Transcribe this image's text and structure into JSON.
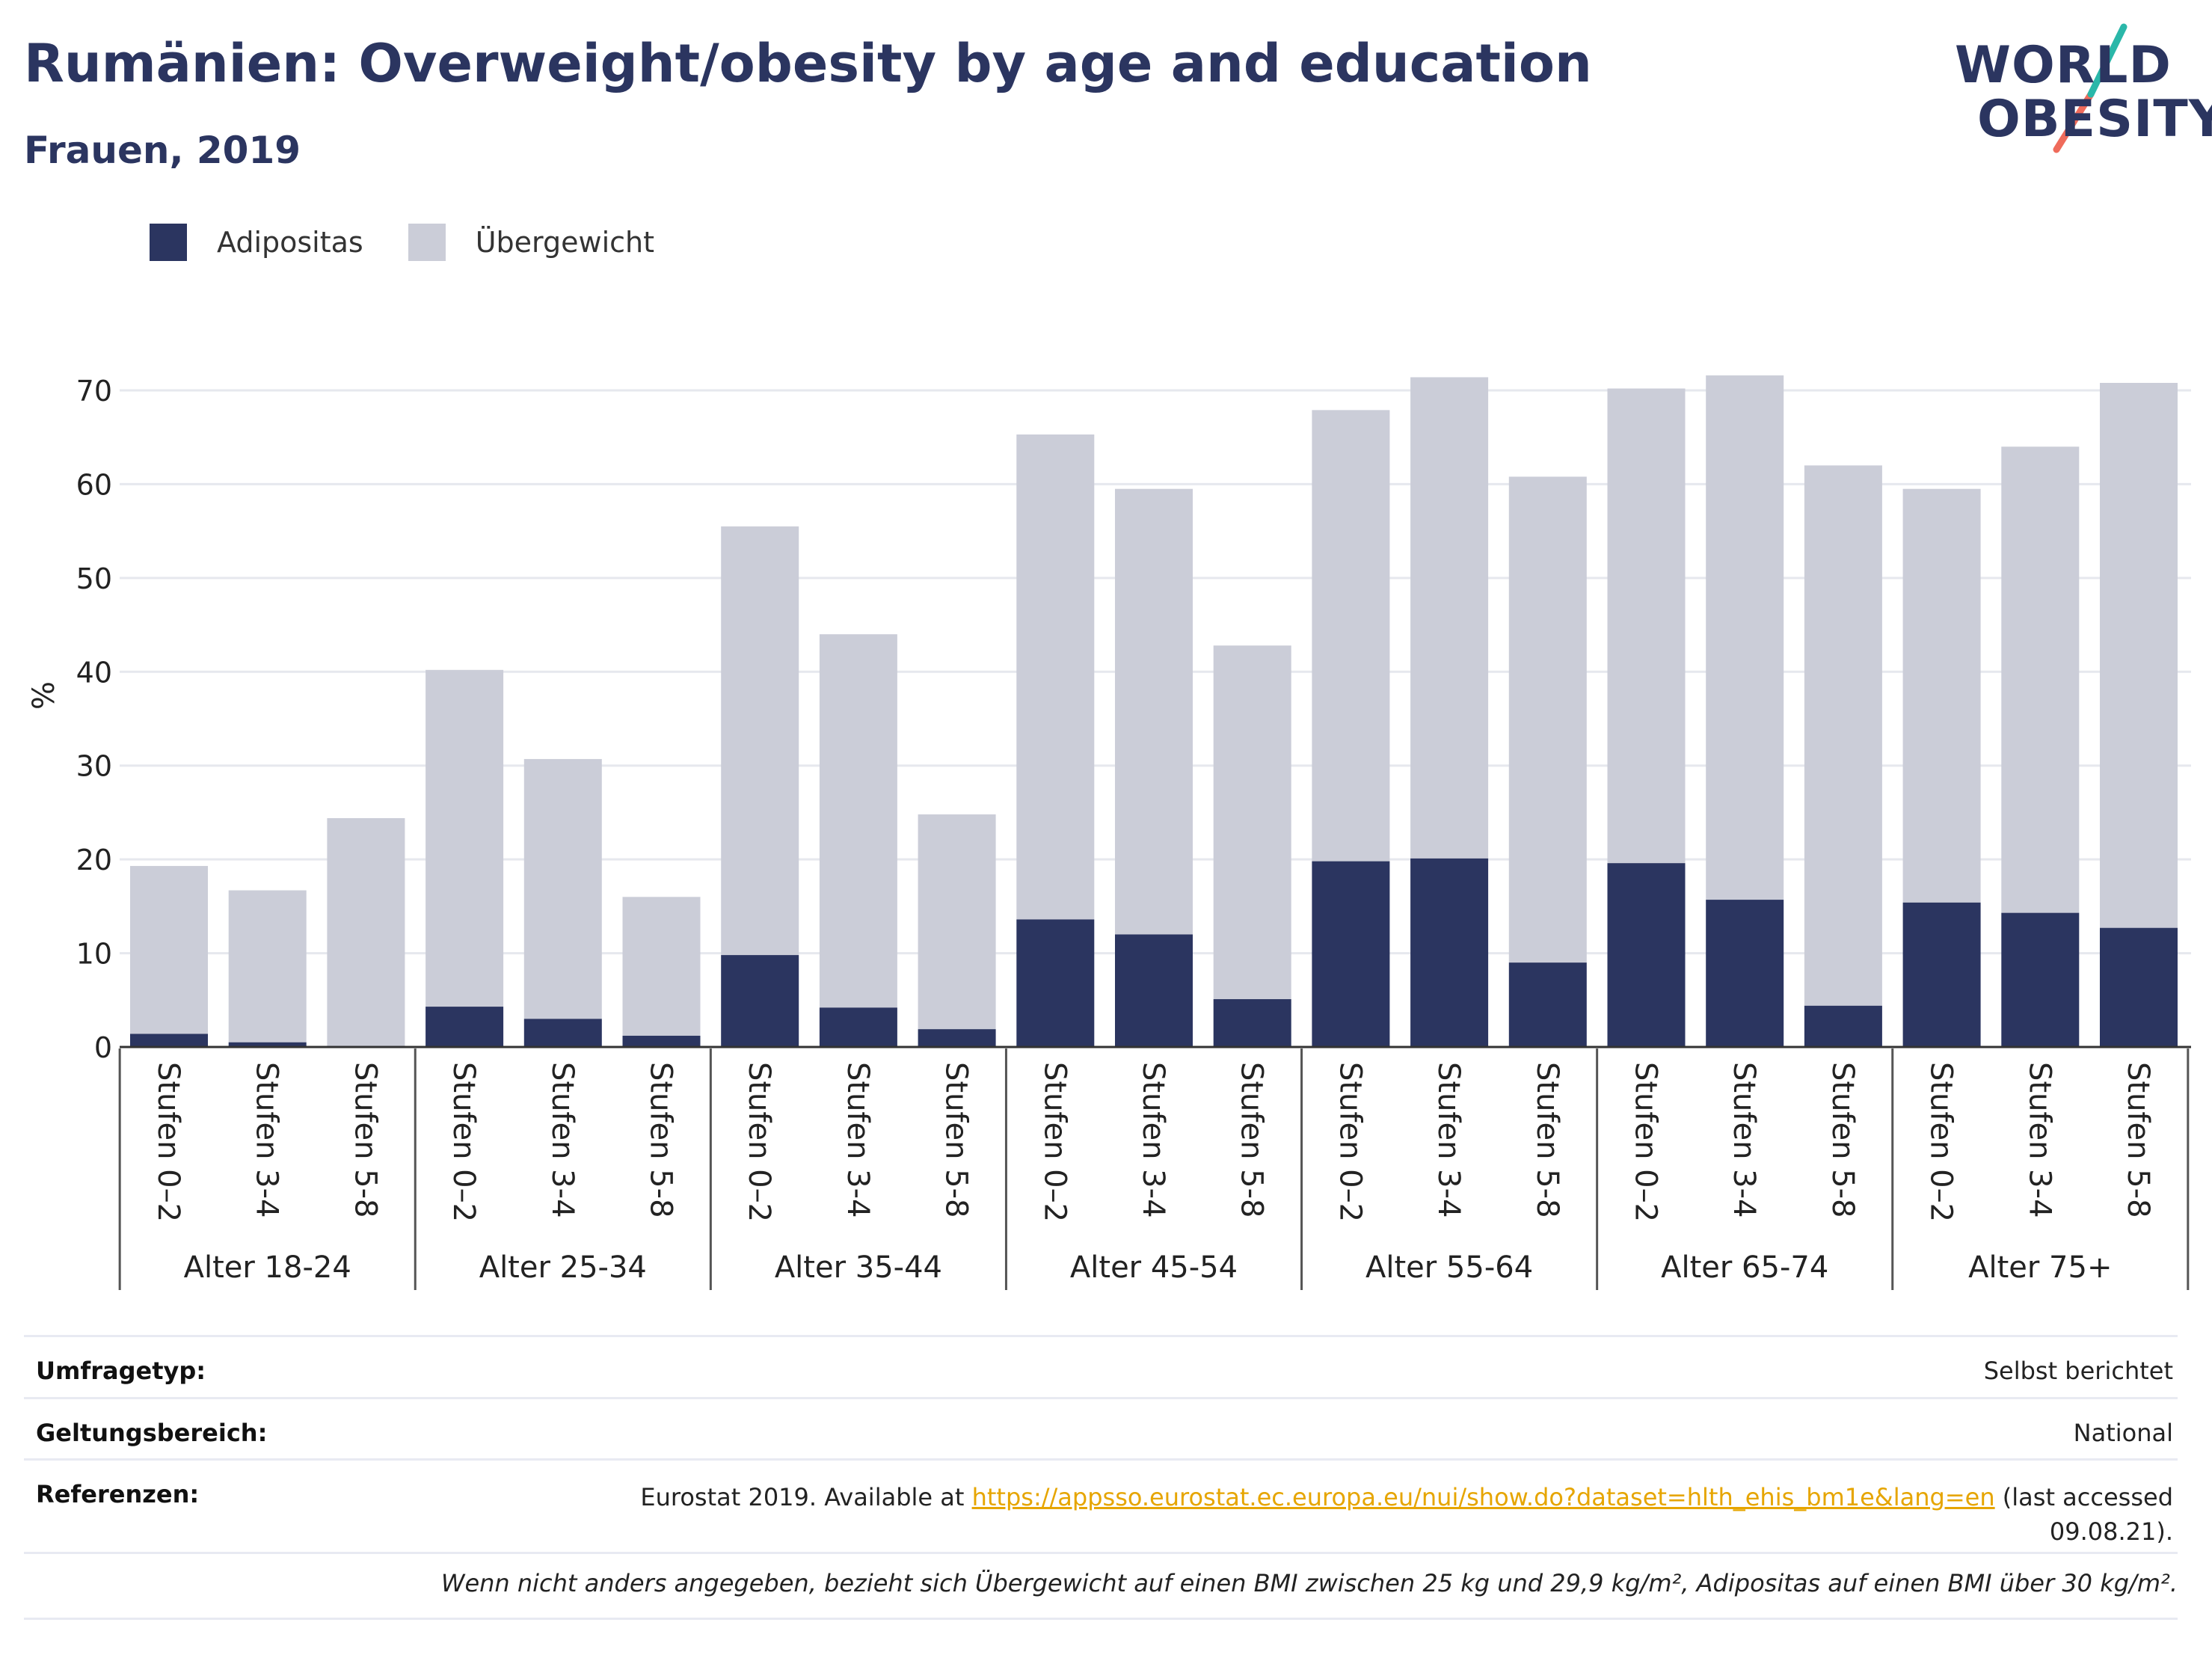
{
  "header": {
    "title": "Rumänien: Overweight/obesity by age and education",
    "subtitle": "Frauen, 2019"
  },
  "logo": {
    "line1": "WORLD",
    "line2": "OBESITY",
    "colors": {
      "text": "#2b3560",
      "stroke_teal": "#2ab7a9",
      "stroke_coral": "#ef6b5b"
    }
  },
  "colors": {
    "adipositas": "#2b3560",
    "uebergewicht": "#cbcdd8",
    "gridline": "#e6e8ee",
    "axis": "#333333",
    "link": "#e6a500"
  },
  "chart_data": {
    "type": "bar",
    "stacked": true,
    "ylabel": "%",
    "ylim": [
      0,
      75
    ],
    "yticks": [
      0,
      10,
      20,
      30,
      40,
      50,
      60,
      70
    ],
    "grid": true,
    "legend_position": "top-left",
    "legend": [
      "Adipositas",
      "Übergewicht"
    ],
    "groups": [
      "Alter 18-24",
      "Alter 25-34",
      "Alter 35-44",
      "Alter 45-54",
      "Alter 55-64",
      "Alter 65-74",
      "Alter 75+"
    ],
    "subcategories": [
      "Stufen 0–2",
      "Stufen 3-4",
      "Stufen 5-8"
    ],
    "series": [
      {
        "name": "Adipositas",
        "values": [
          1.4,
          0.5,
          0.0,
          4.3,
          3.0,
          1.2,
          9.8,
          4.2,
          1.9,
          13.6,
          12.0,
          5.1,
          19.8,
          20.1,
          9.0,
          19.6,
          15.7,
          4.4,
          15.4,
          14.3,
          12.7
        ]
      },
      {
        "name": "Übergewicht",
        "values": [
          17.9,
          16.2,
          24.4,
          35.9,
          27.7,
          14.8,
          45.7,
          39.8,
          22.9,
          51.7,
          47.5,
          37.7,
          48.1,
          51.3,
          51.8,
          50.6,
          55.9,
          57.6,
          44.1,
          49.7,
          58.1
        ]
      }
    ],
    "totals": [
      19.3,
      16.7,
      24.4,
      40.2,
      30.7,
      16.0,
      55.5,
      44.0,
      24.8,
      65.3,
      59.5,
      42.8,
      67.9,
      71.4,
      60.8,
      70.2,
      71.6,
      62.0,
      59.5,
      64.0,
      70.8
    ]
  },
  "footer": {
    "survey_type_label": "Umfragetyp:",
    "survey_type_value": "Selbst berichtet",
    "scope_label": "Geltungsbereich:",
    "scope_value": "National",
    "references_label": "Referenzen:",
    "references_prefix": "Eurostat 2019. Available at ",
    "references_link": "https://appsso.eurostat.ec.europa.eu/nui/show.do?dataset=hlth_ehis_bm1e&lang=en",
    "references_suffix": " (last accessed",
    "references_date": "09.08.21).",
    "footnote": "Wenn nicht anders angegeben, bezieht sich Übergewicht auf einen BMI zwischen 25 kg und 29,9 kg/m², Adipositas auf einen BMI über 30 kg/m²."
  }
}
